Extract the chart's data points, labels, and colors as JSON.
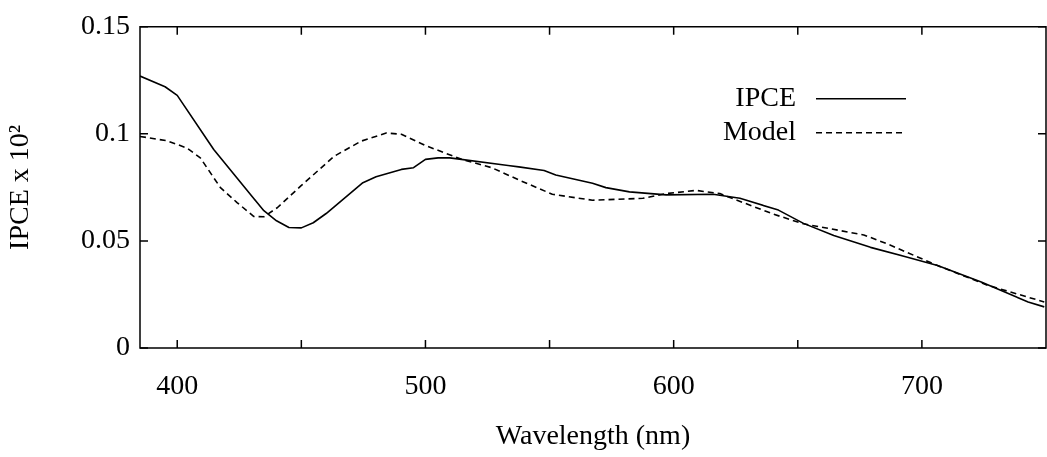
{
  "chart_data": {
    "type": "line",
    "xlabel": "Wavelength (nm)",
    "ylabel": "IPCE x 10²",
    "xlim": [
      385,
      750
    ],
    "ylim": [
      0,
      0.15
    ],
    "xticks": [
      400,
      {
        "value": 450,
        "label": null
      },
      500,
      {
        "value": 550,
        "label": null
      },
      600,
      {
        "value": 650,
        "label": null
      },
      700
    ],
    "yticks": [
      0,
      0.05,
      0.1,
      0.15
    ],
    "grid": false,
    "legend": "top right",
    "marker": "none",
    "series": [
      {
        "name": "IPCE",
        "color": "#000000",
        "line_style": "solid",
        "x": [
          385,
          395.1,
          400,
          414.7,
          434.9,
          440,
          445,
          450,
          454.8,
          460,
          474.8,
          480.1,
          490.3,
          495.2,
          500,
          505.1,
          509.8,
          537.6,
          547.8,
          552.5,
          567.3,
          572.7,
          582.2,
          597,
          615.9,
          626.7,
          642.2,
          652.3,
          664.5,
          679.3,
          694.2,
          706.3,
          723.9,
          742.8,
          749.3
        ],
        "values": [
          0.127,
          0.122,
          0.118,
          0.0927,
          0.0641,
          0.0594,
          0.0563,
          0.0561,
          0.0585,
          0.0628,
          0.0772,
          0.08,
          0.0834,
          0.0842,
          0.0881,
          0.0888,
          0.0888,
          0.0846,
          0.0829,
          0.0808,
          0.0769,
          0.0749,
          0.0729,
          0.0715,
          0.0718,
          0.0699,
          0.0644,
          0.0582,
          0.0525,
          0.047,
          0.0424,
          0.0385,
          0.0308,
          0.0215,
          0.0192
        ]
      },
      {
        "name": "Model",
        "color": "#000000",
        "line_style": "dashed",
        "x": [
          385,
          395.8,
          403.9,
          409.3,
          417.4,
          424.1,
          430.9,
          434.9,
          440.3,
          449.8,
          463.3,
          474.1,
          484.2,
          490.3,
          499.7,
          514.6,
          526.7,
          537.6,
          551.1,
          567.3,
          587.6,
          597,
          609.1,
          618.6,
          640.2,
          652.3,
          667.2,
          676.6,
          686.1,
          706.3,
          726.5,
          749.3
        ],
        "values": [
          0.0988,
          0.0968,
          0.0934,
          0.0888,
          0.0749,
          0.0679,
          0.0614,
          0.0613,
          0.0655,
          0.0757,
          0.0896,
          0.0966,
          0.1004,
          0.0998,
          0.0947,
          0.0881,
          0.0842,
          0.0785,
          0.0718,
          0.069,
          0.0699,
          0.0721,
          0.0736,
          0.0721,
          0.0625,
          0.058,
          0.0548,
          0.0528,
          0.0486,
          0.0385,
          0.0293,
          0.0215
        ]
      }
    ]
  }
}
